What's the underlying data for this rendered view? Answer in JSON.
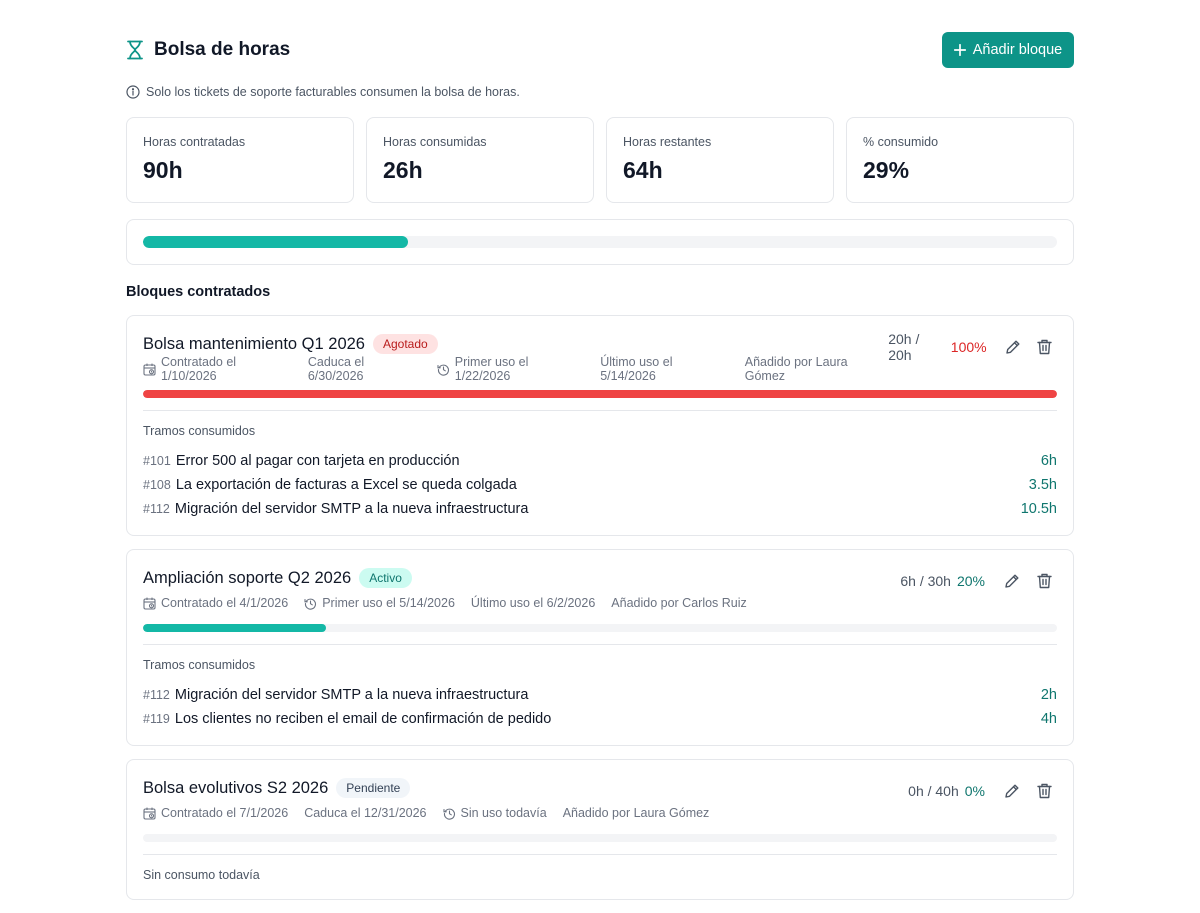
{
  "header": {
    "title": "Bolsa de horas",
    "add_label": "Añadir bloque"
  },
  "notice": "Solo los tickets de soporte facturables consumen la bolsa de horas.",
  "stats": [
    {
      "label": "Horas contratadas",
      "value": "90h"
    },
    {
      "label": "Horas consumidas",
      "value": "26h"
    },
    {
      "label": "Horas restantes",
      "value": "64h"
    },
    {
      "label": "% consumido",
      "value": "29%"
    }
  ],
  "overall_progress": 0.29,
  "section_title": "Bloques contratados",
  "tramos_label": "Tramos consumidos",
  "colors": {
    "accent": "#0d9488",
    "progress_teal": "#14b8a6",
    "danger": "#ef4444",
    "danger_text": "#dc2626",
    "hours_text": "#0f766e"
  },
  "blocks": [
    {
      "name": "Bolsa mantenimiento Q1 2026",
      "status": "Agotado",
      "ratio": "20h / 20h",
      "pct": "100%",
      "progress": 1.0,
      "meta": {
        "contratado": "Contratado el 1/10/2026",
        "caduca": "Caduca el 6/30/2026",
        "primer_uso": "Primer uso el 1/22/2026",
        "ultimo_uso": "Último uso el 5/14/2026",
        "anadido": "Añadido por Laura Gómez"
      },
      "entries": [
        {
          "num": "#101",
          "title": "Error 500 al pagar con tarjeta en producción",
          "hours": "6h"
        },
        {
          "num": "#108",
          "title": "La exportación de facturas a Excel se queda colgada",
          "hours": "3.5h"
        },
        {
          "num": "#112",
          "title": "Migración del servidor SMTP a la nueva infraestructura",
          "hours": "10.5h"
        }
      ]
    },
    {
      "name": "Ampliación soporte Q2 2026",
      "status": "Activo",
      "ratio": "6h / 30h",
      "pct": "20%",
      "progress": 0.2,
      "meta": {
        "contratado": "Contratado el 4/1/2026",
        "primer_uso": "Primer uso el 5/14/2026",
        "ultimo_uso": "Último uso el 6/2/2026",
        "anadido": "Añadido por Carlos Ruiz"
      },
      "entries": [
        {
          "num": "#112",
          "title": "Migración del servidor SMTP a la nueva infraestructura",
          "hours": "2h"
        },
        {
          "num": "#119",
          "title": "Los clientes no reciben el email de confirmación de pedido",
          "hours": "4h"
        }
      ]
    },
    {
      "name": "Bolsa evolutivos S2 2026",
      "status": "Pendiente",
      "ratio": "0h / 40h",
      "pct": "0%",
      "progress": 0,
      "meta": {
        "contratado": "Contratado el 7/1/2026",
        "caduca": "Caduca el 12/31/2026",
        "sin_uso": "Sin uso todavía",
        "anadido": "Añadido por Laura Gómez"
      },
      "empty_text": "Sin consumo todavía"
    }
  ]
}
